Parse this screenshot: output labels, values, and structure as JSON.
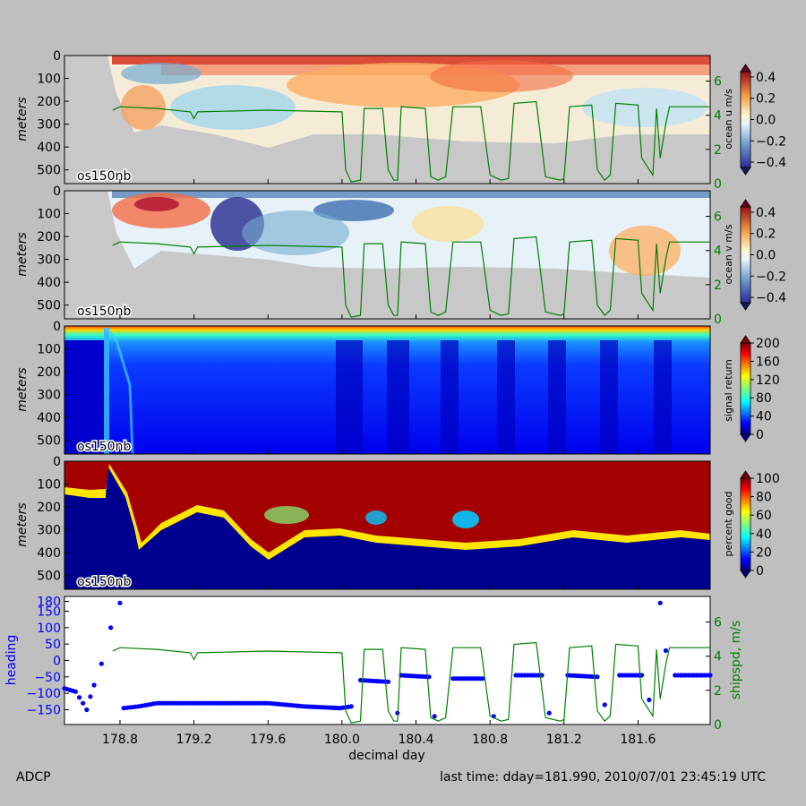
{
  "footer": {
    "left": "ADCP",
    "right": "last time: dday=181.990,  2010/07/01 23:45:19 UTC"
  },
  "colors": {
    "figure_bg": "#bfbfbf",
    "nodata": "#c8c8c8",
    "ship_speed": "#007f00",
    "heading": "#0000ff"
  },
  "chart_data": [
    {
      "type": "heatmap",
      "panel": "ocean-u",
      "label": "os150nb",
      "ylabel": "meters",
      "y_ticks": [
        "0",
        "100",
        "200",
        "300",
        "400",
        "500"
      ],
      "ylim": [
        560,
        0
      ],
      "xlim": [
        178.5,
        181.99
      ],
      "colorbar": {
        "label": "ocean u m/s",
        "ticks": [
          "0.4",
          "0.2",
          "0.0",
          "−0.2",
          "−0.4"
        ],
        "range": [
          -0.45,
          0.45
        ],
        "cmap": "RdYlBu_r"
      },
      "right_axis": {
        "ticks": [
          "6",
          "4",
          "2",
          "0"
        ],
        "range": [
          0,
          7.5
        ]
      }
    },
    {
      "type": "heatmap",
      "panel": "ocean-v",
      "label": "os150nb",
      "ylabel": "meters",
      "y_ticks": [
        "0",
        "100",
        "200",
        "300",
        "400",
        "500"
      ],
      "ylim": [
        560,
        0
      ],
      "xlim": [
        178.5,
        181.99
      ],
      "colorbar": {
        "label": "ocean v m/s",
        "ticks": [
          "0.4",
          "0.2",
          "0.0",
          "−0.2",
          "−0.4"
        ],
        "range": [
          -0.45,
          0.45
        ],
        "cmap": "RdYlBu_r"
      },
      "right_axis": {
        "ticks": [
          "6",
          "4",
          "2",
          "0"
        ],
        "range": [
          0,
          7.5
        ]
      }
    },
    {
      "type": "heatmap",
      "panel": "signal-return",
      "label": "os150nb",
      "ylabel": "meters",
      "y_ticks": [
        "0",
        "100",
        "200",
        "300",
        "400",
        "500"
      ],
      "ylim": [
        560,
        0
      ],
      "xlim": [
        178.5,
        181.99
      ],
      "colorbar": {
        "label": "signal return",
        "ticks": [
          "200",
          "160",
          "120",
          "80",
          "40",
          "0"
        ],
        "range": [
          0,
          200
        ],
        "cmap": "jet"
      }
    },
    {
      "type": "heatmap",
      "panel": "percent-good",
      "label": "os150nb",
      "ylabel": "meters",
      "y_ticks": [
        "0",
        "100",
        "200",
        "300",
        "400",
        "500"
      ],
      "ylim": [
        560,
        0
      ],
      "xlim": [
        178.5,
        181.99
      ],
      "colorbar": {
        "label": "percent good",
        "ticks": [
          "100",
          "80",
          "60",
          "40",
          "20",
          "0"
        ],
        "range": [
          0,
          100
        ],
        "cmap": "jet"
      }
    },
    {
      "type": "scatter",
      "panel": "heading-shipspeed",
      "xlabel": "decimal day",
      "x_ticks": [
        "178.8",
        "179.2",
        "179.6",
        "180.0",
        "180.4",
        "180.8",
        "181.2",
        "181.6"
      ],
      "xlim": [
        178.5,
        181.99
      ],
      "ylabel": "heading",
      "y_ticks": [
        "150",
        "100",
        "50",
        "0",
        "−50",
        "−100",
        "−150",
        "180"
      ],
      "ylim": [
        -195,
        195
      ],
      "y2label": "shipspd, m/s",
      "y2_ticks": [
        "6",
        "4",
        "2",
        "0"
      ],
      "y2lim": [
        0,
        7.5
      ],
      "ship_speed": [
        [
          178.76,
          4.3
        ],
        [
          178.8,
          4.5
        ],
        [
          179.0,
          4.4
        ],
        [
          179.18,
          4.2
        ],
        [
          179.2,
          3.8
        ],
        [
          179.22,
          4.2
        ],
        [
          179.6,
          4.3
        ],
        [
          179.99,
          4.2
        ],
        [
          180.0,
          4.2
        ],
        [
          180.02,
          0.8
        ],
        [
          180.05,
          0.1
        ],
        [
          180.1,
          0.2
        ],
        [
          180.12,
          4.4
        ],
        [
          180.22,
          4.4
        ],
        [
          180.25,
          0.8
        ],
        [
          180.28,
          0.2
        ],
        [
          180.3,
          0.2
        ],
        [
          180.32,
          4.5
        ],
        [
          180.45,
          4.4
        ],
        [
          180.48,
          0.4
        ],
        [
          180.52,
          0.2
        ],
        [
          180.56,
          0.4
        ],
        [
          180.6,
          4.5
        ],
        [
          180.75,
          4.5
        ],
        [
          180.8,
          0.5
        ],
        [
          180.86,
          0.2
        ],
        [
          180.9,
          0.3
        ],
        [
          180.93,
          4.7
        ],
        [
          181.05,
          4.8
        ],
        [
          181.1,
          0.4
        ],
        [
          181.18,
          0.2
        ],
        [
          181.2,
          0.3
        ],
        [
          181.23,
          4.5
        ],
        [
          181.35,
          4.6
        ],
        [
          181.38,
          0.8
        ],
        [
          181.42,
          0.2
        ],
        [
          181.45,
          0.5
        ],
        [
          181.48,
          4.7
        ],
        [
          181.6,
          4.6
        ],
        [
          181.62,
          1.5
        ],
        [
          181.68,
          0.5
        ],
        [
          181.7,
          4.4
        ],
        [
          181.72,
          1.5
        ],
        [
          181.75,
          3.5
        ],
        [
          181.77,
          4.5
        ],
        [
          181.99,
          4.5
        ]
      ],
      "heading": [
        [
          178.5,
          -85
        ],
        [
          178.56,
          -95
        ],
        [
          178.6,
          -130
        ],
        [
          178.62,
          -150
        ],
        [
          178.64,
          -110
        ],
        [
          178.66,
          -75
        ],
        [
          178.7,
          -10
        ],
        [
          178.75,
          100
        ],
        [
          178.8,
          175
        ],
        [
          178.82,
          -145
        ],
        [
          178.9,
          -140
        ],
        [
          179.0,
          -130
        ],
        [
          179.3,
          -130
        ],
        [
          179.6,
          -130
        ],
        [
          179.8,
          -140
        ],
        [
          179.99,
          -145
        ],
        [
          180.05,
          -140
        ],
        [
          180.1,
          -60
        ],
        [
          180.25,
          -65
        ],
        [
          180.3,
          -160
        ],
        [
          180.32,
          -45
        ],
        [
          180.47,
          -50
        ],
        [
          180.5,
          -170
        ],
        [
          180.6,
          -55
        ],
        [
          180.76,
          -55
        ],
        [
          180.82,
          -170
        ],
        [
          180.94,
          -45
        ],
        [
          181.08,
          -45
        ],
        [
          181.12,
          -160
        ],
        [
          181.22,
          -45
        ],
        [
          181.38,
          -50
        ],
        [
          181.42,
          -135
        ],
        [
          181.5,
          -45
        ],
        [
          181.62,
          -45
        ],
        [
          181.66,
          -120
        ],
        [
          181.72,
          175
        ],
        [
          181.75,
          30
        ],
        [
          181.8,
          -45
        ],
        [
          181.99,
          -45
        ]
      ]
    }
  ]
}
